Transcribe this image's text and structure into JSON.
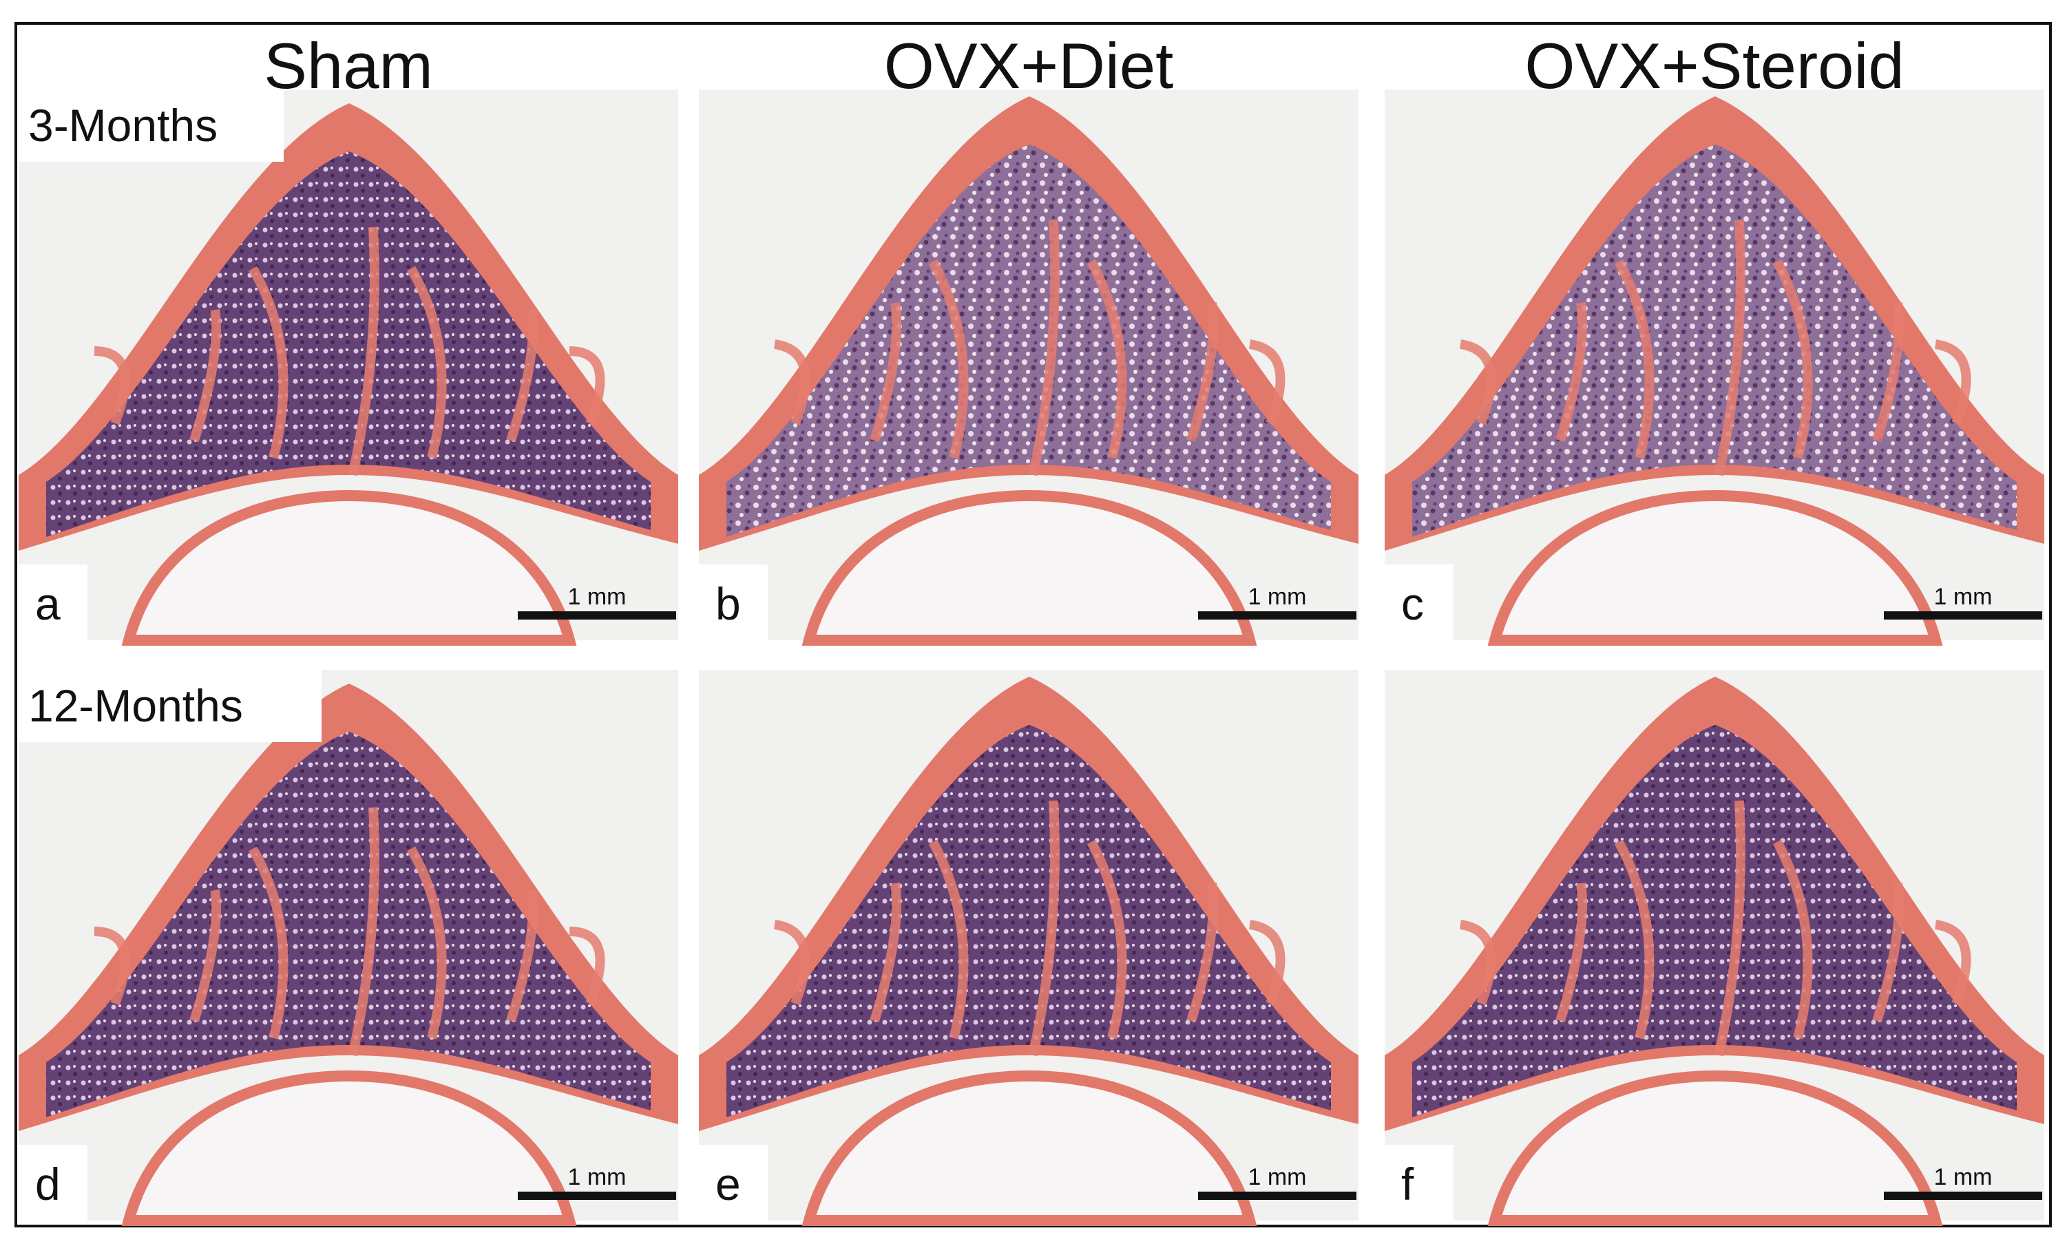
{
  "columns": [
    "Sham",
    "OVX+Diet",
    "OVX+Steroid"
  ],
  "rows": [
    "3-Months",
    "12-Months"
  ],
  "panels": [
    {
      "letter": "a",
      "scale_bar": "1 mm"
    },
    {
      "letter": "b",
      "scale_bar": "1 mm"
    },
    {
      "letter": "c",
      "scale_bar": "1 mm"
    },
    {
      "letter": "d",
      "scale_bar": "1 mm"
    },
    {
      "letter": "e",
      "scale_bar": "1 mm"
    },
    {
      "letter": "f",
      "scale_bar": "1 mm"
    }
  ]
}
